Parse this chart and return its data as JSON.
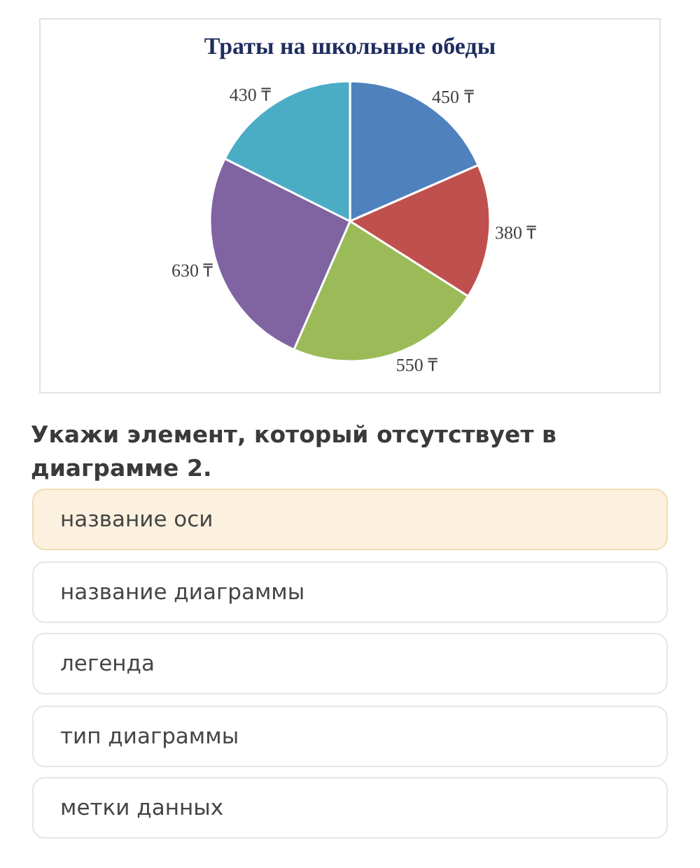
{
  "chart_data": {
    "type": "pie",
    "title": "Траты на школьные обеды",
    "categories": [
      null,
      null,
      null,
      null,
      null
    ],
    "values": [
      450,
      380,
      550,
      630,
      430
    ],
    "value_labels": [
      "450 ₸",
      "380 ₸",
      "550 ₸",
      "630 ₸",
      "430 ₸"
    ],
    "colors": [
      "#4f81bd",
      "#c0504d",
      "#9bbb59",
      "#8064a2",
      "#4bacc6"
    ],
    "annotations": [
      "Укажи элемент, который отсутствует в диаграмме 2.",
      "название оси",
      "название диаграммы",
      "легенда",
      "тип диаграммы",
      "метки данных"
    ]
  }
}
